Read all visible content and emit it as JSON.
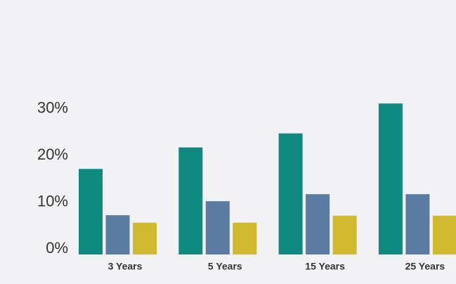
{
  "chart_data": {
    "type": "bar",
    "categories": [
      "3 Years",
      "5 Years",
      "15 Years",
      "25 Years"
    ],
    "series": [
      {
        "color": "#0e8a80",
        "values": [
          18.3,
          22.9,
          25.9,
          32.3
        ]
      },
      {
        "color": "#5b7ba0",
        "values": [
          8.4,
          11.4,
          12.9,
          12.9
        ]
      },
      {
        "color": "#d1b92e",
        "values": [
          6.8,
          6.8,
          8.3,
          8.3
        ]
      }
    ],
    "ylim": [
      0,
      36
    ],
    "yticks": [
      {
        "value": 0,
        "label": "0%"
      },
      {
        "value": 10,
        "label": "10%"
      },
      {
        "value": 20,
        "label": "20%"
      },
      {
        "value": 30,
        "label": "30%"
      }
    ],
    "grid": false
  }
}
